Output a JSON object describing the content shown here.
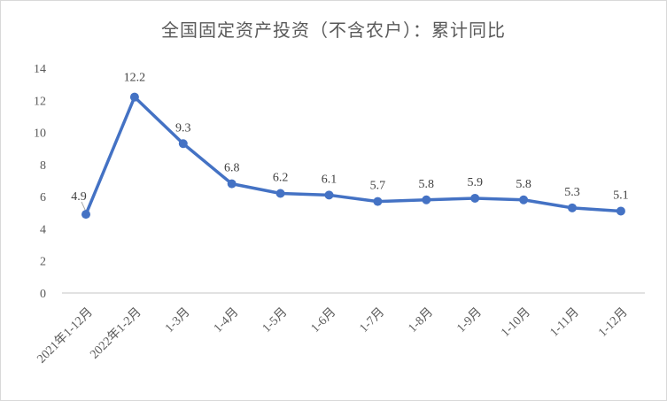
{
  "chart_data": {
    "type": "line",
    "title": "全国固定资产投资（不含农户）：累计同比",
    "categories": [
      "2021年1-12月",
      "2022年1-2月",
      "1-3月",
      "1-4月",
      "1-5月",
      "1-6月",
      "1-7月",
      "1-8月",
      "1-9月",
      "1-10月",
      "1-11月",
      "1-12月"
    ],
    "values": [
      4.9,
      12.2,
      9.3,
      6.8,
      6.2,
      6.1,
      5.7,
      5.8,
      5.9,
      5.8,
      5.3,
      5.1
    ],
    "data_labels": [
      "4.9",
      "12.2",
      "9.3",
      "6.8",
      "6.2",
      "6.1",
      "5.7",
      "5.8",
      "5.9",
      "5.8",
      "5.3",
      "5.1"
    ],
    "y_ticks": [
      "0",
      "2",
      "4",
      "6",
      "8",
      "10",
      "12",
      "14"
    ],
    "ylim": [
      0,
      14
    ],
    "xlabel": "",
    "ylabel": "",
    "grid": false,
    "legend": "none",
    "line_color": "#4472c4"
  }
}
